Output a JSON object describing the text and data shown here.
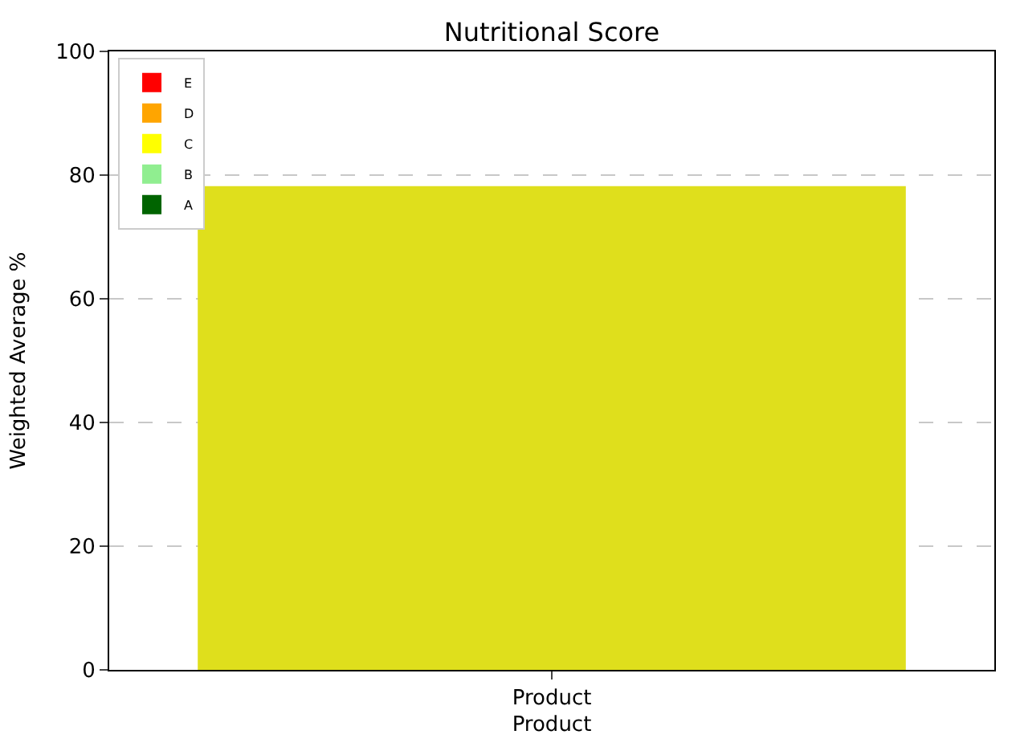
{
  "chart_data": {
    "type": "bar",
    "title": "Nutritional Score",
    "xlabel": "Product",
    "ylabel": "Weighted Average %",
    "categories": [
      "Product"
    ],
    "series": [
      {
        "color": "#dfdf1c",
        "values": [
          78.2
        ]
      },
      {
        "name": "E",
        "color": "#ff0000",
        "values": [
          null
        ]
      },
      {
        "name": "D",
        "color": "#ffa500",
        "values": [
          null
        ]
      },
      {
        "name": "C",
        "color": "#ffff00",
        "values": [
          null
        ]
      },
      {
        "name": "B",
        "color": "#90ee90",
        "values": [
          null
        ]
      },
      {
        "name": "A",
        "color": "#006400",
        "values": [
          null
        ]
      }
    ],
    "ylim": [
      0,
      100
    ],
    "yticks": [
      0,
      20,
      40,
      60,
      80,
      100
    ],
    "grid": "y",
    "legend": "top left"
  }
}
